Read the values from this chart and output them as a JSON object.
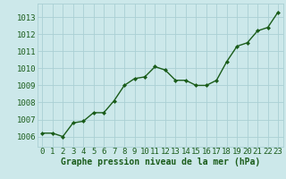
{
  "x": [
    0,
    1,
    2,
    3,
    4,
    5,
    6,
    7,
    8,
    9,
    10,
    11,
    12,
    13,
    14,
    15,
    16,
    17,
    18,
    19,
    20,
    21,
    22,
    23
  ],
  "y": [
    1006.2,
    1006.2,
    1006.0,
    1006.8,
    1006.9,
    1007.4,
    1007.4,
    1008.1,
    1009.0,
    1009.4,
    1009.5,
    1010.1,
    1009.9,
    1009.3,
    1009.3,
    1009.0,
    1009.0,
    1009.3,
    1010.4,
    1011.3,
    1011.5,
    1012.2,
    1012.4,
    1013.3
  ],
  "line_color": "#1a5c1a",
  "marker": "D",
  "marker_size": 2,
  "line_width": 1.0,
  "bg_color": "#cce8ea",
  "grid_color": "#aad0d4",
  "xlabel": "Graphe pression niveau de la mer (hPa)",
  "xlabel_color": "#1a5c1a",
  "xlabel_fontsize": 7,
  "ylabel_ticks": [
    1006,
    1007,
    1008,
    1009,
    1010,
    1011,
    1012,
    1013
  ],
  "xlim": [
    -0.5,
    23.5
  ],
  "ylim": [
    1005.4,
    1013.8
  ],
  "tick_color": "#1a5c1a",
  "tick_fontsize": 6.5,
  "xticks": [
    0,
    1,
    2,
    3,
    4,
    5,
    6,
    7,
    8,
    9,
    10,
    11,
    12,
    13,
    14,
    15,
    16,
    17,
    18,
    19,
    20,
    21,
    22,
    23
  ]
}
